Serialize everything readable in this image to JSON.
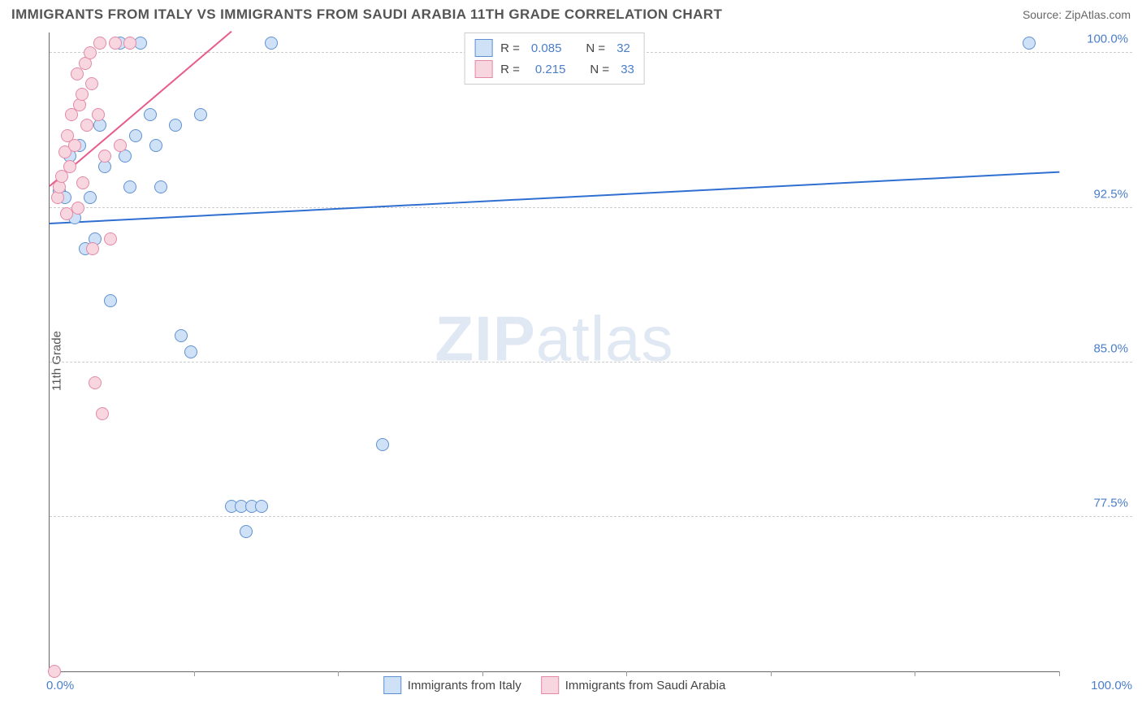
{
  "header": {
    "title": "IMMIGRANTS FROM ITALY VS IMMIGRANTS FROM SAUDI ARABIA 11TH GRADE CORRELATION CHART",
    "source_prefix": "Source: ",
    "source_name": "ZipAtlas.com"
  },
  "watermark": {
    "zip": "ZIP",
    "atlas": "atlas"
  },
  "chart": {
    "type": "scatter",
    "y_axis_label": "11th Grade",
    "xlim": [
      0,
      100
    ],
    "ylim": [
      70,
      101
    ],
    "x_tick_label_min": "0.0%",
    "x_tick_label_max": "100.0%",
    "x_tick_marks": [
      0,
      14.3,
      28.6,
      42.9,
      57.1,
      71.4,
      85.7,
      100
    ],
    "y_ticks": [
      {
        "v": 100.0,
        "label": "100.0%"
      },
      {
        "v": 92.5,
        "label": "92.5%"
      },
      {
        "v": 85.0,
        "label": "85.0%"
      },
      {
        "v": 77.5,
        "label": "77.5%"
      }
    ],
    "dot_radius": 8,
    "dot_stroke_width": 1.5,
    "series": [
      {
        "id": "italy",
        "label": "Immigrants from Italy",
        "fill": "#cfe1f6",
        "stroke": "#5f91d2",
        "line_color": "#2f6fd0",
        "R": "0.085",
        "N": "32",
        "trend": {
          "x1": 0,
          "y1": 91.7,
          "x2": 100,
          "y2": 94.2
        },
        "points": [
          [
            1.0,
            93.3
          ],
          [
            1.5,
            93.0
          ],
          [
            2.0,
            95.0
          ],
          [
            2.5,
            92.0
          ],
          [
            3.0,
            95.5
          ],
          [
            3.5,
            90.5
          ],
          [
            4.0,
            93.0
          ],
          [
            4.5,
            91.0
          ],
          [
            5.0,
            96.5
          ],
          [
            5.5,
            94.5
          ],
          [
            6.0,
            88.0
          ],
          [
            7.0,
            100.5
          ],
          [
            7.5,
            95.0
          ],
          [
            8.0,
            93.5
          ],
          [
            8.5,
            96.0
          ],
          [
            9.0,
            100.5
          ],
          [
            10.0,
            97.0
          ],
          [
            10.5,
            95.5
          ],
          [
            11.0,
            93.5
          ],
          [
            12.5,
            96.5
          ],
          [
            13.0,
            86.3
          ],
          [
            14.0,
            85.5
          ],
          [
            15.0,
            97.0
          ],
          [
            18.0,
            78.0
          ],
          [
            19.0,
            78.0
          ],
          [
            20.0,
            78.0
          ],
          [
            19.5,
            76.8
          ],
          [
            21.0,
            78.0
          ],
          [
            22.0,
            100.5
          ],
          [
            33.0,
            81.0
          ],
          [
            97.0,
            100.5
          ]
        ]
      },
      {
        "id": "saudi",
        "label": "Immigrants from Saudi Arabia",
        "fill": "#f8d6e0",
        "stroke": "#e389a8",
        "line_color": "#e85b8e",
        "R": "0.215",
        "N": "33",
        "trend": {
          "x1": 0,
          "y1": 93.5,
          "x2": 18,
          "y2": 101
        },
        "points": [
          [
            0.5,
            70.0
          ],
          [
            0.8,
            93.0
          ],
          [
            1.0,
            93.5
          ],
          [
            1.2,
            94.0
          ],
          [
            1.5,
            95.2
          ],
          [
            1.8,
            96.0
          ],
          [
            2.0,
            94.5
          ],
          [
            2.2,
            97.0
          ],
          [
            2.5,
            95.5
          ],
          [
            2.7,
            99.0
          ],
          [
            3.0,
            97.5
          ],
          [
            3.2,
            98.0
          ],
          [
            3.5,
            99.5
          ],
          [
            3.7,
            96.5
          ],
          [
            4.0,
            100.0
          ],
          [
            4.2,
            98.5
          ],
          [
            4.5,
            84.0
          ],
          [
            4.8,
            97.0
          ],
          [
            5.0,
            100.5
          ],
          [
            5.2,
            82.5
          ],
          [
            5.5,
            95.0
          ],
          [
            6.0,
            91.0
          ],
          [
            6.5,
            100.5
          ],
          [
            7.0,
            95.5
          ],
          [
            8.0,
            100.5
          ],
          [
            4.3,
            90.5
          ],
          [
            2.8,
            92.5
          ],
          [
            3.3,
            93.7
          ],
          [
            1.7,
            92.2
          ]
        ]
      }
    ],
    "legend_top": {
      "R_label": "R =",
      "N_label": "N ="
    }
  }
}
